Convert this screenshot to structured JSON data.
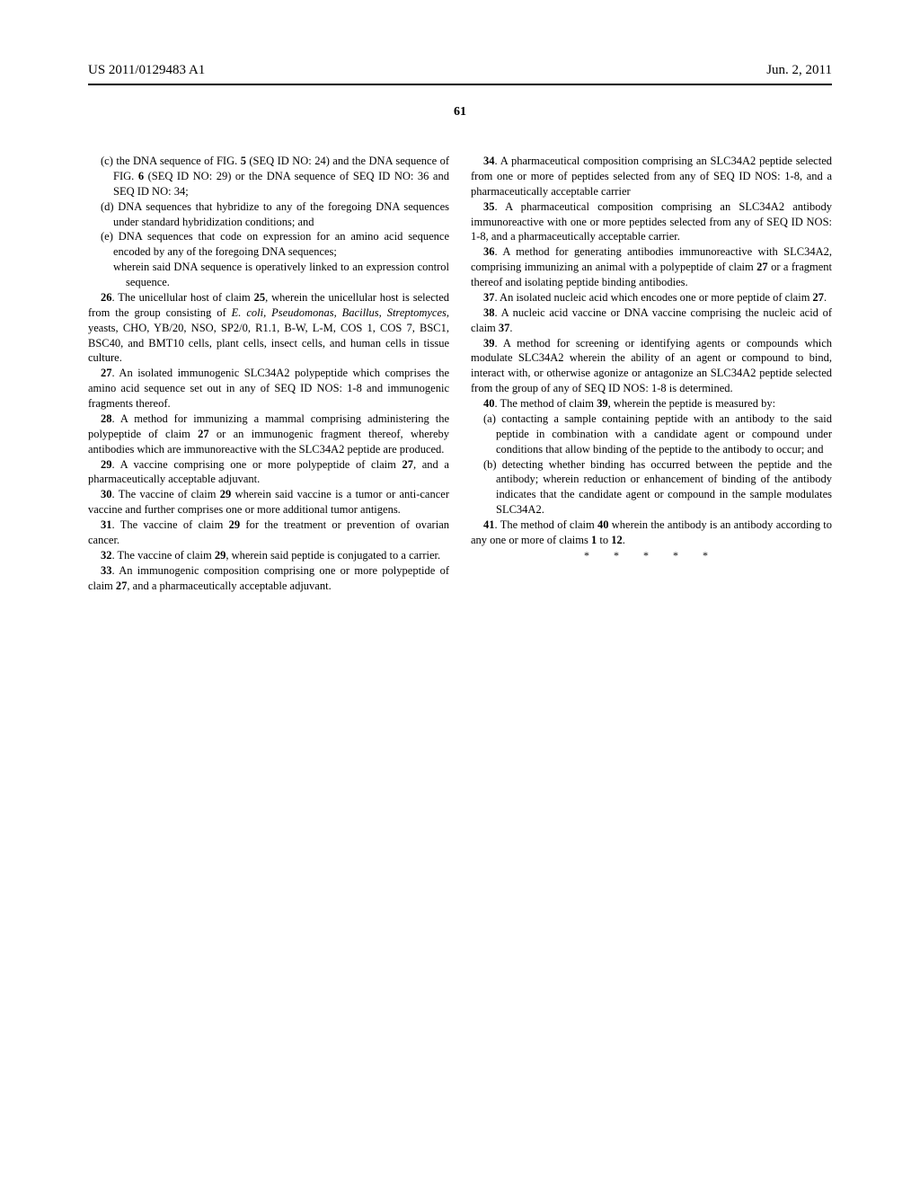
{
  "header": {
    "publication_number": "US 2011/0129483 A1",
    "date": "Jun. 2, 2011"
  },
  "page_number": "61",
  "left_column": {
    "item_c": "(c) the DNA sequence of FIG. ",
    "item_c_bold1": "5",
    "item_c_cont1": " (SEQ ID NO: 24) and the DNA sequence of FIG. ",
    "item_c_bold2": "6",
    "item_c_cont2": " (SEQ ID NO: 29) or the DNA sequence of SEQ ID NO: 36 and SEQ ID NO: 34;",
    "item_d": "(d) DNA sequences that hybridize to any of the foregoing DNA sequences under standard hybridization conditions; and",
    "item_e": "(e) DNA sequences that code on expression for an amino acid sequence encoded by any of the foregoing DNA sequences;",
    "item_e_sub": "wherein said DNA sequence is operatively linked to an expression control sequence.",
    "claim_26_num": "26",
    "claim_26_text1": ". The unicellular host of claim ",
    "claim_26_ref": "25",
    "claim_26_text2": ", wherein the unicellular host is selected from the group consisting of ",
    "claim_26_italic": "E. coli, Pseudomonas, Bacillus, Streptomyces",
    "claim_26_text3": ", yeasts, CHO, YB/20, NSO, SP2/0, R1.1, B-W, L-M, COS 1, COS 7, BSC1, BSC40, and BMT10 cells, plant cells, insect cells, and human cells in tissue culture.",
    "claim_27_num": "27",
    "claim_27_text": ". An isolated immunogenic SLC34A2 polypeptide which comprises the amino acid sequence set out in any of SEQ ID NOS: 1-8 and immunogenic fragments thereof.",
    "claim_28_num": "28",
    "claim_28_text1": ". A method for immunizing a mammal comprising administering the polypeptide of claim ",
    "claim_28_ref": "27",
    "claim_28_text2": " or an immunogenic fragment thereof, whereby antibodies which are immunoreactive with the SLC34A2 peptide are produced.",
    "claim_29_num": "29",
    "claim_29_text1": ". A vaccine comprising one or more polypeptide of claim ",
    "claim_29_ref": "27",
    "claim_29_text2": ", and a pharmaceutically acceptable adjuvant.",
    "claim_30_num": "30",
    "claim_30_text1": ". The vaccine of claim ",
    "claim_30_ref": "29",
    "claim_30_text2": " wherein said vaccine is a tumor or anti-cancer vaccine and further comprises one or more additional tumor antigens.",
    "claim_31_num": "31",
    "claim_31_text1": ". The vaccine of claim ",
    "claim_31_ref": "29",
    "claim_31_text2": " for the treatment or prevention of ovarian cancer.",
    "claim_32_num": "32",
    "claim_32_text1": ". The vaccine of claim ",
    "claim_32_ref": "29",
    "claim_32_text2": ", wherein said peptide is conjugated to a carrier.",
    "claim_33_num": "33",
    "claim_33_text1": ". An immunogenic composition comprising one or more polypeptide of claim ",
    "claim_33_ref": "27",
    "claim_33_text2": ", and a pharmaceutically acceptable adjuvant."
  },
  "right_column": {
    "claim_34_num": "34",
    "claim_34_text": ". A pharmaceutical composition comprising an SLC34A2 peptide selected from one or more of peptides selected from any of SEQ ID NOS: 1-8, and a pharmaceutically acceptable carrier",
    "claim_35_num": "35",
    "claim_35_text": ". A pharmaceutical composition comprising an SLC34A2 antibody immunoreactive with one or more peptides selected from any of SEQ ID NOS: 1-8, and a pharmaceutically acceptable carrier.",
    "claim_36_num": "36",
    "claim_36_text1": ". A method for generating antibodies immunoreactive with SLC34A2, comprising immunizing an animal with a polypeptide of claim ",
    "claim_36_ref": "27",
    "claim_36_text2": " or a fragment thereof and isolating peptide binding antibodies.",
    "claim_37_num": "37",
    "claim_37_text1": ". An isolated nucleic acid which encodes one or more peptide of claim ",
    "claim_37_ref": "27",
    "claim_37_text2": ".",
    "claim_38_num": "38",
    "claim_38_text1": ". A nucleic acid vaccine or DNA vaccine comprising the nucleic acid of claim ",
    "claim_38_ref": "37",
    "claim_38_text2": ".",
    "claim_39_num": "39",
    "claim_39_text": ". A method for screening or identifying agents or compounds which modulate SLC34A2 wherein the ability of an agent or compound to bind, interact with, or otherwise agonize or antagonize an SLC34A2 peptide selected from the group of any of SEQ ID NOS: 1-8 is determined.",
    "claim_40_num": "40",
    "claim_40_text1": ". The method of claim ",
    "claim_40_ref": "39",
    "claim_40_text2": ", wherein the peptide is measured by:",
    "claim_40_a": "(a) contacting a sample containing peptide with an antibody to the said peptide in combination with a candidate agent or compound under conditions that allow binding of the peptide to the antibody to occur; and",
    "claim_40_b": "(b) detecting whether binding has occurred between the peptide and the antibody; wherein reduction or enhancement of binding of the antibody indicates that the candidate agent or compound in the sample modulates SLC34A2.",
    "claim_41_num": "41",
    "claim_41_text1": ". The method of claim ",
    "claim_41_ref1": "40",
    "claim_41_text2": " wherein the antibody is an antibody according to any one or more of claims ",
    "claim_41_ref2": "1",
    "claim_41_text3": " to ",
    "claim_41_ref3": "12",
    "claim_41_text4": "."
  },
  "end_mark": "* * * * *"
}
